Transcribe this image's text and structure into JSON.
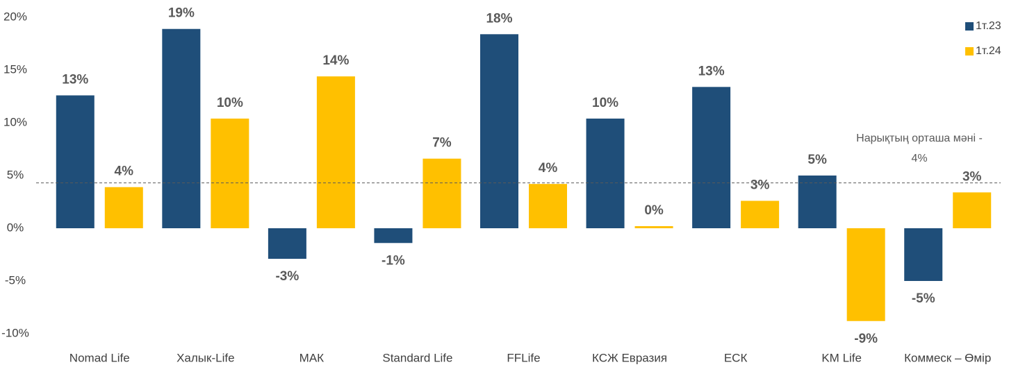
{
  "chart_data": {
    "type": "bar",
    "categories": [
      "Nomad Life",
      "Халык-Life",
      "МАК",
      "Standard Life",
      "FFLife",
      "КСЖ Евразия",
      "ЕСК",
      "KM Life",
      "Коммеск – Өмір"
    ],
    "series": [
      {
        "name": "1т.23",
        "color": "#1f4e79",
        "values": [
          12.6,
          18.9,
          -2.9,
          -1.4,
          18.4,
          10.4,
          13.4,
          5.0,
          -5.0
        ],
        "value_labels": [
          "13%",
          "19%",
          "-3%",
          "-1%",
          "18%",
          "10%",
          "13%",
          "5%",
          "-5%"
        ]
      },
      {
        "name": "1т.24",
        "color": "#ffc000",
        "values": [
          3.9,
          10.4,
          14.4,
          6.6,
          4.2,
          0.2,
          2.6,
          -8.8,
          3.4
        ],
        "value_labels": [
          "4%",
          "10%",
          "14%",
          "7%",
          "4%",
          "0%",
          "3%",
          "-9%",
          "3%"
        ]
      }
    ],
    "ylim": [
      -10,
      20
    ],
    "yticks": [
      {
        "value": -10,
        "label": "-10%"
      },
      {
        "value": -5,
        "label": "-5%"
      },
      {
        "value": 0,
        "label": "0%"
      },
      {
        "value": 5,
        "label": "5%"
      },
      {
        "value": 10,
        "label": "10%"
      },
      {
        "value": 15,
        "label": "15%"
      },
      {
        "value": 20,
        "label": "20%"
      }
    ],
    "reference_line": 4.3,
    "annotation": [
      "Нарықтың орташа мәні -",
      "4%"
    ],
    "legend": "top-right"
  }
}
